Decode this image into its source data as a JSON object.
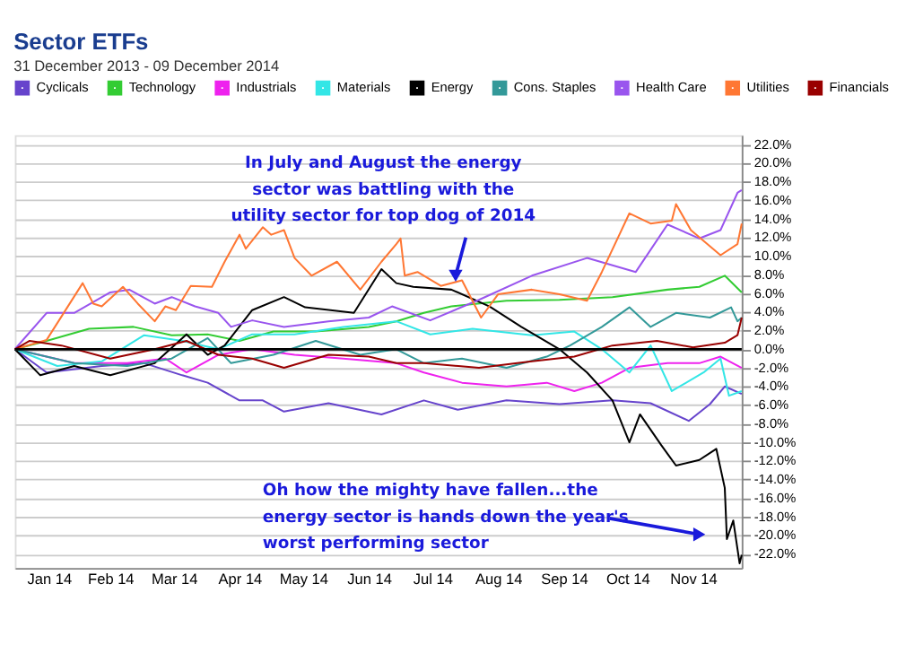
{
  "chart_data": {
    "type": "line",
    "title": "Sector ETFs",
    "subtitle": "31 December 2013 - 09 December 2014",
    "xlim": [
      "2013-12-31",
      "2014-12-09"
    ],
    "xticks": [
      {
        "value": "2014-01-16",
        "label": "Jan 14"
      },
      {
        "value": "2014-02-14",
        "label": "Feb 14"
      },
      {
        "value": "2014-03-16",
        "label": "Mar 14"
      },
      {
        "value": "2014-04-16",
        "label": "Apr 14"
      },
      {
        "value": "2014-05-16",
        "label": "May 14"
      },
      {
        "value": "2014-06-16",
        "label": "Jun 14"
      },
      {
        "value": "2014-07-16",
        "label": "Jul 14"
      },
      {
        "value": "2014-08-16",
        "label": "Aug 14"
      },
      {
        "value": "2014-09-16",
        "label": "Sep 14"
      },
      {
        "value": "2014-10-16",
        "label": "Oct 14"
      },
      {
        "value": "2014-11-16",
        "label": "Nov 14"
      }
    ],
    "ylim": [
      -23.5,
      23
    ],
    "yticks": [
      {
        "value": -22,
        "label": "-22.0%"
      },
      {
        "value": -20,
        "label": "-20.0%"
      },
      {
        "value": -18,
        "label": "-18.0%"
      },
      {
        "value": -16,
        "label": "-16.0%"
      },
      {
        "value": -14,
        "label": "-14.0%"
      },
      {
        "value": -12,
        "label": "-12.0%"
      },
      {
        "value": -10,
        "label": "-10.0%"
      },
      {
        "value": -8,
        "label": "-8.0%"
      },
      {
        "value": -6,
        "label": "-6.0%"
      },
      {
        "value": -4,
        "label": "-4.0%"
      },
      {
        "value": -2,
        "label": "-2.0%"
      },
      {
        "value": 0,
        "label": "0.0%"
      },
      {
        "value": 2,
        "label": "2.0%"
      },
      {
        "value": 4,
        "label": "4.0%"
      },
      {
        "value": 6,
        "label": "6.0%"
      },
      {
        "value": 8,
        "label": "8.0%"
      },
      {
        "value": 10,
        "label": "10.0%"
      },
      {
        "value": 12,
        "label": "12.0%"
      },
      {
        "value": 14,
        "label": "14.0%"
      },
      {
        "value": 16,
        "label": "16.0%"
      },
      {
        "value": 18,
        "label": "18.0%"
      },
      {
        "value": 20,
        "label": "20.0%"
      },
      {
        "value": 22,
        "label": "22.0%"
      }
    ],
    "grid": "y",
    "legend": "top",
    "marker": "none",
    "line_style": "solid",
    "ref_lines": [
      {
        "axis": "y",
        "value": 0,
        "color": "#000000"
      }
    ],
    "annotations": [
      {
        "text": "In July and August the energy\nsector was battling with the\nutility sector for top dog of 2014",
        "x": "2014-07-27",
        "y": 7.9
      },
      {
        "text": "Oh how the mighty have fallen...the\nenergy sector is hands down the year's\nworst performing sector",
        "x": "2014-11-19",
        "y": -19.9
      }
    ],
    "series": [
      {
        "name": "Cyclicals",
        "color": "#6644cc",
        "x": [
          "2013-12-31",
          "2014-01-15",
          "2014-02-10",
          "2014-03-02",
          "2014-03-20",
          "2014-04-01",
          "2014-04-16",
          "2014-04-27",
          "2014-05-07",
          "2014-05-28",
          "2014-06-22",
          "2014-07-12",
          "2014-07-28",
          "2014-08-20",
          "2014-09-14",
          "2014-10-09",
          "2014-10-27",
          "2014-11-14",
          "2014-11-24",
          "2014-12-01",
          "2014-12-09"
        ],
        "values": [
          0,
          -2.5,
          -1.8,
          -1.5,
          -2.8,
          -3.6,
          -5.5,
          -5.5,
          -6.7,
          -5.8,
          -7,
          -5.5,
          -6.5,
          -5.5,
          -5.9,
          -5.5,
          -5.8,
          -7.7,
          -5.9,
          -4,
          -4.8
        ]
      },
      {
        "name": "Technology",
        "color": "#33cc33",
        "x": [
          "2013-12-31",
          "2014-01-15",
          "2014-02-04",
          "2014-02-25",
          "2014-03-15",
          "2014-04-01",
          "2014-04-16",
          "2014-05-02",
          "2014-05-22",
          "2014-06-16",
          "2014-06-29",
          "2014-07-12",
          "2014-07-25",
          "2014-08-20",
          "2014-09-14",
          "2014-10-09",
          "2014-11-04",
          "2014-11-19",
          "2014-12-01",
          "2014-12-09"
        ],
        "values": [
          0,
          0.9,
          2.2,
          2.4,
          1.5,
          1.6,
          0.9,
          1.9,
          1.9,
          2.4,
          3,
          3.9,
          4.6,
          5.2,
          5.3,
          5.6,
          6.4,
          6.7,
          7.9,
          6.1
        ]
      },
      {
        "name": "Industrials",
        "color": "#ee22ee",
        "x": [
          "2013-12-31",
          "2014-01-28",
          "2014-02-22",
          "2014-03-12",
          "2014-03-22",
          "2014-04-06",
          "2014-04-22",
          "2014-05-12",
          "2014-06-04",
          "2014-06-29",
          "2014-07-12",
          "2014-07-30",
          "2014-08-20",
          "2014-09-08",
          "2014-09-21",
          "2014-10-04",
          "2014-10-17",
          "2014-11-04",
          "2014-11-19",
          "2014-11-29",
          "2014-12-09"
        ],
        "values": [
          0,
          -1.5,
          -1.5,
          -1,
          -2.5,
          -0.6,
          0,
          -0.6,
          -1,
          -1.5,
          -2.5,
          -3.6,
          -4,
          -3.6,
          -4.5,
          -3.6,
          -2,
          -1.5,
          -1.5,
          -0.8,
          -2
        ]
      },
      {
        "name": "Materials",
        "color": "#33e6e6",
        "x": [
          "2013-12-31",
          "2014-01-20",
          "2014-02-10",
          "2014-03-02",
          "2014-03-20",
          "2014-04-06",
          "2014-04-22",
          "2014-05-12",
          "2014-06-04",
          "2014-06-29",
          "2014-07-15",
          "2014-08-04",
          "2014-09-01",
          "2014-09-21",
          "2014-10-04",
          "2014-10-17",
          "2014-10-27",
          "2014-11-06",
          "2014-11-21",
          "2014-11-29",
          "2014-12-03",
          "2014-12-09"
        ],
        "values": [
          0,
          -1.8,
          -1.3,
          1.5,
          0.9,
          0,
          1.6,
          1.6,
          2.4,
          3,
          1.6,
          2.2,
          1.5,
          1.9,
          0,
          -2.5,
          0.4,
          -4.5,
          -2.5,
          -1,
          -5,
          -4.5
        ]
      },
      {
        "name": "Energy",
        "color": "#000000",
        "x": [
          "2013-12-31",
          "2014-01-12",
          "2014-01-28",
          "2014-02-14",
          "2014-03-07",
          "2014-03-22",
          "2014-04-01",
          "2014-04-09",
          "2014-04-22",
          "2014-05-07",
          "2014-05-17",
          "2014-06-09",
          "2014-06-22",
          "2014-06-29",
          "2014-07-07",
          "2014-07-25",
          "2014-08-12",
          "2014-08-27",
          "2014-09-14",
          "2014-09-27",
          "2014-10-09",
          "2014-10-17",
          "2014-10-22",
          "2014-11-01",
          "2014-11-08",
          "2014-11-19",
          "2014-11-27",
          "2014-12-01",
          "2014-12-02",
          "2014-12-05",
          "2014-12-08",
          "2014-12-09"
        ],
        "values": [
          0,
          -2.8,
          -1.8,
          -2.8,
          -1.5,
          1.6,
          -0.6,
          0.4,
          4.2,
          5.6,
          4.5,
          3.9,
          8.6,
          7.1,
          6.7,
          6.4,
          4.6,
          2.4,
          0,
          -2.5,
          -5.5,
          -10,
          -7,
          -10.3,
          -12.5,
          -11.9,
          -10.7,
          -14.9,
          -20.4,
          -18.4,
          -23,
          -22.1
        ]
      },
      {
        "name": "Cons. Staples",
        "color": "#339999",
        "x": [
          "2013-12-31",
          "2014-01-28",
          "2014-02-22",
          "2014-03-15",
          "2014-04-01",
          "2014-04-12",
          "2014-05-02",
          "2014-05-22",
          "2014-06-12",
          "2014-06-29",
          "2014-07-12",
          "2014-07-30",
          "2014-08-20",
          "2014-09-08",
          "2014-09-19",
          "2014-10-04",
          "2014-10-17",
          "2014-10-27",
          "2014-11-08",
          "2014-11-24",
          "2014-12-04",
          "2014-12-07",
          "2014-12-09"
        ],
        "values": [
          0,
          -1.5,
          -1.8,
          -1,
          1.2,
          -1.5,
          -0.6,
          0.9,
          -0.6,
          0,
          -1.5,
          -1,
          -2,
          -0.8,
          0.4,
          2.4,
          4.5,
          2.4,
          3.9,
          3.4,
          4.5,
          3,
          3.4
        ]
      },
      {
        "name": "Health Care",
        "color": "#9955ee",
        "x": [
          "2013-12-31",
          "2014-01-15",
          "2014-01-28",
          "2014-02-14",
          "2014-02-23",
          "2014-03-07",
          "2014-03-15",
          "2014-03-26",
          "2014-04-06",
          "2014-04-12",
          "2014-04-22",
          "2014-05-07",
          "2014-05-28",
          "2014-06-16",
          "2014-06-27",
          "2014-07-15",
          "2014-08-07",
          "2014-09-01",
          "2014-09-27",
          "2014-10-20",
          "2014-11-04",
          "2014-11-19",
          "2014-11-29",
          "2014-12-07",
          "2014-12-09"
        ],
        "values": [
          0,
          3.9,
          3.9,
          6.1,
          6.4,
          4.9,
          5.6,
          4.6,
          3.9,
          2.4,
          3.1,
          2.4,
          3,
          3.4,
          4.6,
          3.1,
          5.3,
          7.9,
          9.8,
          8.3,
          13.4,
          11.9,
          12.8,
          16.8,
          17.1
        ]
      },
      {
        "name": "Utilities",
        "color": "#ff7733",
        "x": [
          "2013-12-31",
          "2014-01-15",
          "2014-02-01",
          "2014-02-06",
          "2014-02-10",
          "2014-02-20",
          "2014-02-27",
          "2014-03-07",
          "2014-03-12",
          "2014-03-17",
          "2014-03-24",
          "2014-04-03",
          "2014-04-09",
          "2014-04-16",
          "2014-04-19",
          "2014-04-27",
          "2014-05-01",
          "2014-05-07",
          "2014-05-12",
          "2014-05-20",
          "2014-06-01",
          "2014-06-12",
          "2014-06-22",
          "2014-06-29",
          "2014-07-01",
          "2014-07-03",
          "2014-07-09",
          "2014-07-20",
          "2014-07-30",
          "2014-08-08",
          "2014-08-16",
          "2014-09-01",
          "2014-09-14",
          "2014-09-27",
          "2014-10-04",
          "2014-10-17",
          "2014-10-27",
          "2014-11-06",
          "2014-11-08",
          "2014-11-15",
          "2014-11-29",
          "2014-12-07",
          "2014-12-09"
        ],
        "values": [
          0,
          1,
          7.1,
          4.9,
          4.6,
          6.7,
          4.9,
          3,
          4.6,
          4.2,
          6.8,
          6.7,
          9.4,
          12.3,
          10.8,
          13.1,
          12.3,
          12.8,
          9.8,
          7.9,
          9.4,
          6.4,
          9.4,
          11.3,
          11.9,
          7.9,
          8.3,
          6.8,
          7.4,
          3.4,
          5.9,
          6.4,
          5.9,
          5.2,
          8.3,
          14.6,
          13.5,
          13.8,
          15.6,
          12.8,
          10.1,
          11.3,
          13.5
        ]
      },
      {
        "name": "Financials",
        "color": "#990000",
        "x": [
          "2013-12-31",
          "2014-01-07",
          "2014-01-22",
          "2014-02-14",
          "2014-03-07",
          "2014-03-22",
          "2014-04-06",
          "2014-04-22",
          "2014-05-07",
          "2014-05-28",
          "2014-06-16",
          "2014-06-29",
          "2014-07-12",
          "2014-08-07",
          "2014-09-01",
          "2014-09-21",
          "2014-10-09",
          "2014-10-30",
          "2014-11-16",
          "2014-12-01",
          "2014-12-07",
          "2014-12-09"
        ],
        "values": [
          0,
          0.9,
          0.4,
          -1,
          0,
          0.9,
          -0.6,
          -1,
          -2,
          -0.6,
          -0.8,
          -1.5,
          -1.5,
          -2,
          -1.3,
          -0.8,
          0.4,
          0.9,
          0.2,
          0.7,
          1.5,
          3.4
        ]
      }
    ]
  }
}
